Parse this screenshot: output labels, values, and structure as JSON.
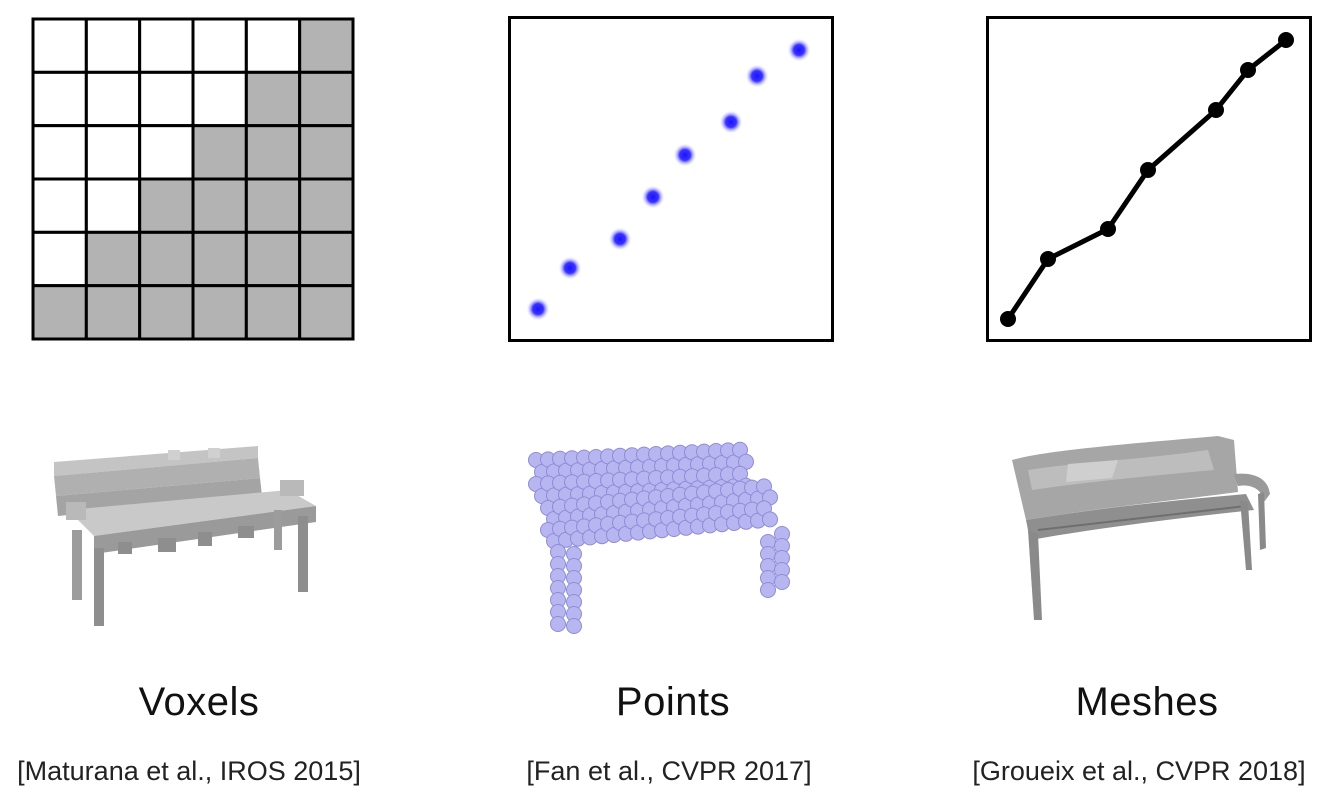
{
  "representations": [
    {
      "title": "Voxels",
      "citation": "[Maturana et al., IROS 2015]"
    },
    {
      "title": "Points",
      "citation": "[Fan et al., CVPR 2017]"
    },
    {
      "title": "Meshes",
      "citation": "[Groueix et al., CVPR 2018]"
    }
  ],
  "voxel_grid": {
    "rows": 6,
    "cols": 6,
    "filled_from_right": [
      1,
      2,
      3,
      4,
      5,
      6
    ]
  },
  "colors": {
    "voxel_fill": "#b3b3b3",
    "grid_line": "#000000",
    "point_center": "#1a12ff",
    "point_halo": "#b9b5ff",
    "mesh_line": "#000000",
    "bench_voxel": "#a9a9a9",
    "bench_points": "#b8b6f0",
    "bench_mesh": "#9a9a9a"
  },
  "icons": [
    "voxel-bench-icon",
    "point-cloud-bench-icon",
    "mesh-bench-icon"
  ]
}
